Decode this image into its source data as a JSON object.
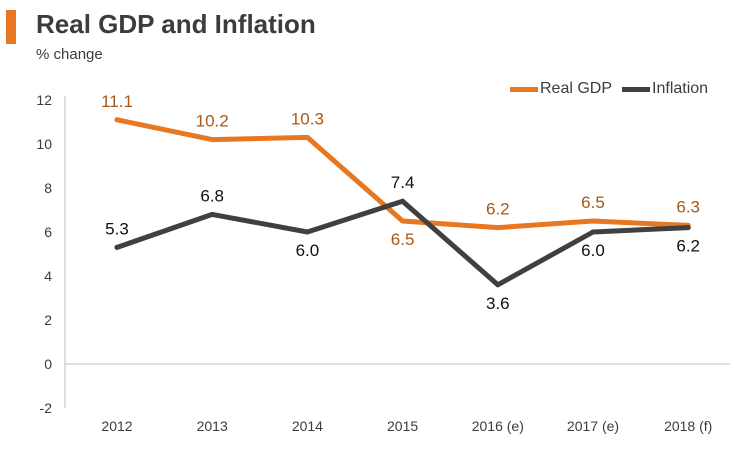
{
  "header": {
    "title": "Real GDP and Inflation",
    "subtitle": "% change"
  },
  "colors": {
    "accent": "#E87722",
    "gdp": "#E87722",
    "gdp_label": "#A85814",
    "inflation": "#404040",
    "inflation_label": "#111111"
  },
  "chart_data": {
    "type": "line",
    "title": "Real GDP and Inflation",
    "ylabel": "% change",
    "xlabel": "",
    "categories": [
      "2012",
      "2013",
      "2014",
      "2015",
      "2016 (e)",
      "2017 (e)",
      "2018 (f)"
    ],
    "ylim": [
      -2,
      12
    ],
    "yticks": [
      "-2",
      "0",
      "2",
      "4",
      "6",
      "8",
      "10",
      "12"
    ],
    "legend_position": "top-right",
    "series": [
      {
        "name": "Real GDP",
        "values": [
          11.1,
          10.2,
          10.3,
          6.5,
          6.2,
          6.5,
          6.3
        ],
        "labels": [
          "11.1",
          "10.2",
          "10.3",
          "6.5",
          "6.2",
          "6.5",
          "6.3"
        ],
        "label_position": [
          "above",
          "above",
          "above",
          "below",
          "above",
          "above",
          "above"
        ]
      },
      {
        "name": "Inflation",
        "values": [
          5.3,
          6.8,
          6.0,
          7.4,
          3.6,
          6.0,
          6.2
        ],
        "labels": [
          "5.3",
          "6.8",
          "6.0",
          "7.4",
          "3.6",
          "6.0",
          "6.2"
        ],
        "label_position": [
          "above",
          "above",
          "below",
          "above",
          "below",
          "below",
          "below"
        ]
      }
    ]
  }
}
